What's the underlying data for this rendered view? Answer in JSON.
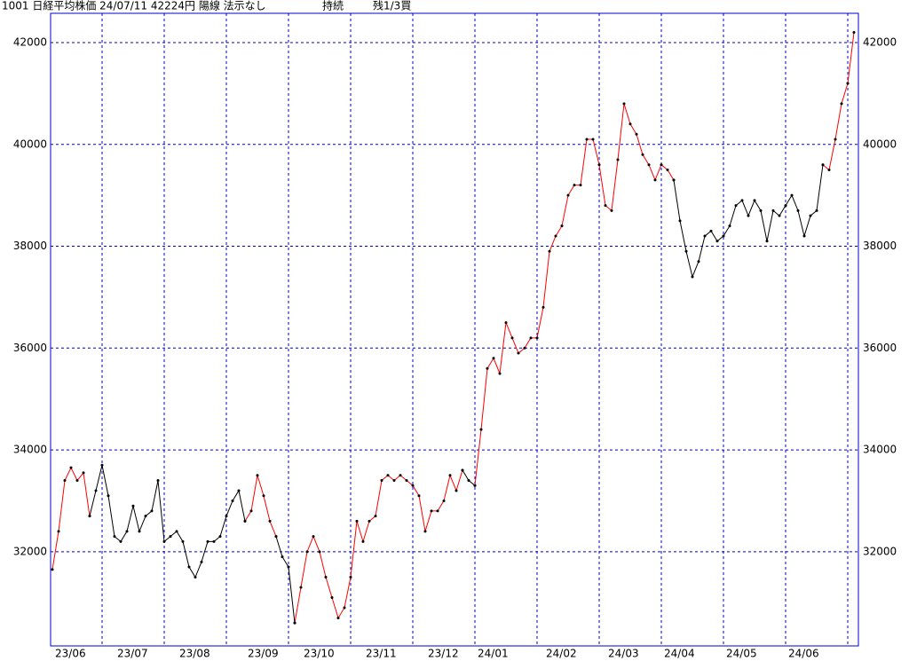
{
  "chart_data": {
    "type": "line",
    "title": "1001 日経平均株価 24/07/11 42224円 陽線 法示なし",
    "status": "持続",
    "note": "残1/3買",
    "categories": [
      "23/06",
      null,
      null,
      null,
      null,
      null,
      null,
      null,
      null,
      null,
      "23/07",
      null,
      null,
      null,
      null,
      null,
      null,
      null,
      null,
      null,
      "23/08",
      null,
      null,
      null,
      null,
      null,
      null,
      null,
      null,
      null,
      null,
      "23/09",
      null,
      null,
      null,
      null,
      null,
      null,
      null,
      null,
      "23/10",
      null,
      null,
      null,
      null,
      null,
      null,
      null,
      null,
      null,
      "23/11",
      null,
      null,
      null,
      null,
      null,
      null,
      null,
      null,
      null,
      "23/12",
      null,
      null,
      null,
      null,
      null,
      null,
      null,
      "24/01",
      null,
      null,
      null,
      null,
      null,
      null,
      null,
      null,
      null,
      null,
      "24/02",
      null,
      null,
      null,
      null,
      null,
      null,
      null,
      null,
      null,
      "24/03",
      null,
      null,
      null,
      null,
      null,
      null,
      null,
      null,
      "24/04",
      null,
      null,
      null,
      null,
      null,
      null,
      null,
      null,
      null,
      "24/05",
      null,
      null,
      null,
      null,
      null,
      null,
      null,
      null,
      null,
      "24/06",
      null,
      null,
      null,
      null,
      null,
      null,
      null,
      null,
      null,
      null,
      null
    ],
    "series": [
      {
        "color": "#ff0000",
        "values": [
          31650,
          32400,
          33400,
          33650,
          33400,
          33550,
          32700,
          null,
          null,
          null,
          null,
          null,
          null,
          null,
          null,
          null,
          null,
          null,
          null,
          null,
          null,
          null,
          null,
          null,
          null,
          null,
          null,
          null,
          null,
          null,
          null,
          32600,
          32800,
          33500,
          33100,
          32600,
          32300,
          null,
          null,
          30600,
          31300,
          32000,
          32300,
          32000,
          31500,
          31100,
          30700,
          30900,
          31500,
          32600,
          32200,
          32600,
          32700,
          33400,
          33500,
          33400,
          33500,
          33400,
          33300,
          33100,
          32400,
          32800,
          32800,
          33000,
          33500,
          33200,
          33600,
          null,
          33300,
          34400,
          35600,
          35800,
          35500,
          36500,
          36200,
          35900,
          36000,
          36200,
          36200,
          36800,
          37900,
          38200,
          38400,
          39000,
          39200,
          39200,
          40100,
          40100,
          39600,
          38800,
          38700,
          39700,
          40800,
          40400,
          40200,
          39800,
          39600,
          39300,
          39600,
          39500,
          39300,
          null,
          null,
          null,
          null,
          null,
          null,
          null,
          null,
          null,
          null,
          null,
          null,
          null,
          null,
          null,
          null,
          null,
          null,
          null,
          null,
          null,
          null,
          null,
          39600,
          39500,
          40100,
          40800,
          41200,
          42200
        ]
      },
      {
        "color": "#000000",
        "values": [
          null,
          null,
          null,
          null,
          null,
          null,
          32700,
          33200,
          33700,
          33100,
          32300,
          32200,
          32400,
          32900,
          32400,
          32700,
          32800,
          33400,
          32200,
          32300,
          32400,
          32200,
          31700,
          31500,
          31800,
          32200,
          32200,
          32300,
          32700,
          33000,
          33200,
          32600,
          null,
          null,
          null,
          null,
          32300,
          31900,
          31700,
          30600,
          null,
          null,
          null,
          null,
          null,
          null,
          null,
          null,
          null,
          null,
          null,
          null,
          null,
          null,
          null,
          null,
          null,
          null,
          null,
          null,
          null,
          null,
          null,
          null,
          null,
          null,
          33600,
          33400,
          33300,
          null,
          null,
          null,
          null,
          null,
          null,
          null,
          null,
          null,
          null,
          null,
          null,
          null,
          null,
          null,
          null,
          null,
          null,
          null,
          null,
          null,
          null,
          null,
          null,
          null,
          null,
          null,
          null,
          null,
          null,
          null,
          39300,
          38500,
          37900,
          37400,
          37700,
          38200,
          38300,
          38100,
          38200,
          38400,
          38800,
          38900,
          38600,
          38900,
          38700,
          38100,
          38700,
          38600,
          38800,
          39000,
          38700,
          38200,
          38600,
          38700,
          39600,
          null,
          null,
          null,
          null,
          null
        ]
      }
    ],
    "ylim": [
      30150,
      42575
    ],
    "yticks": [
      32000,
      34000,
      36000,
      38000,
      40000,
      42000
    ],
    "grid": true,
    "grid_color": "#0000cc",
    "frame_color": "#0000cc"
  }
}
